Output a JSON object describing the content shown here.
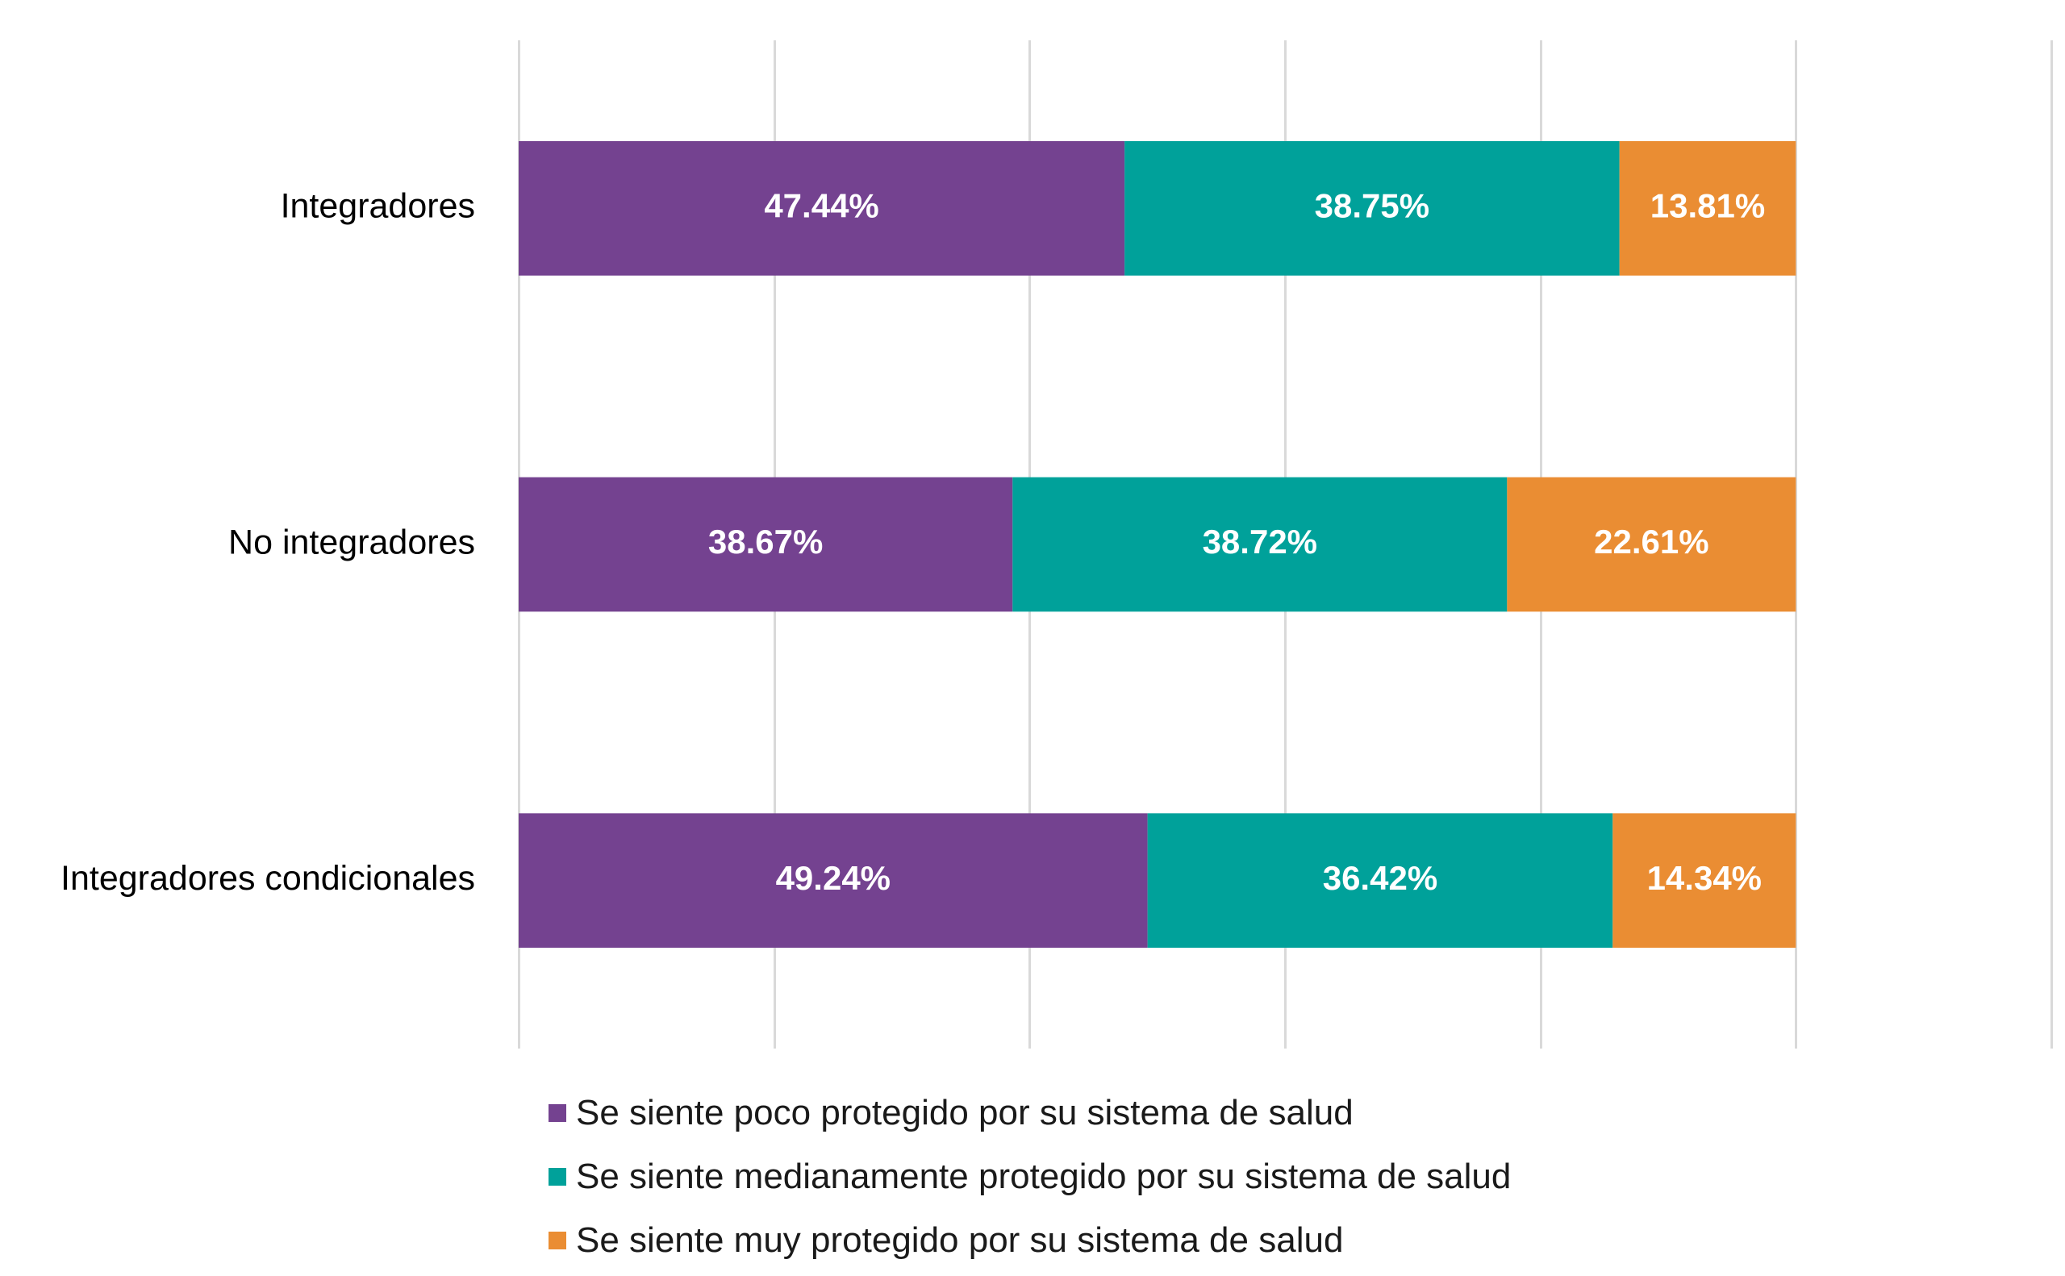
{
  "chart_data": {
    "type": "bar",
    "orientation": "horizontal",
    "stacked": true,
    "categories": [
      "Integradores",
      "No integradores",
      "Integradores condicionales"
    ],
    "series": [
      {
        "name": "Se siente poco protegido por su sistema de salud",
        "color": "#744290",
        "values": [
          47.44,
          38.67,
          49.24
        ]
      },
      {
        "name": "Se siente medianamente protegido por su sistema de salud",
        "color": "#00A19A",
        "values": [
          38.75,
          38.72,
          36.42
        ]
      },
      {
        "name": "Se siente muy protegido por su sistema de salud",
        "color": "#EA8D33",
        "values": [
          13.81,
          22.61,
          14.34
        ]
      }
    ],
    "data_labels": [
      [
        "47.44%",
        "38.75%",
        "13.81%"
      ],
      [
        "38.67%",
        "38.72%",
        "22.61%"
      ],
      [
        "49.24%",
        "36.42%",
        "14.34%"
      ]
    ],
    "xlim": [
      0,
      120
    ],
    "grid": true,
    "legend_position": "bottom"
  }
}
